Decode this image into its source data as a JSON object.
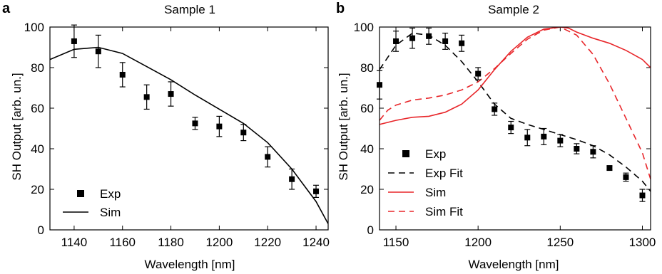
{
  "chart_data": [
    {
      "panel_label": "a",
      "type": "scatter",
      "title": "Sample 1",
      "xlabel": "Wavelength [nm]",
      "ylabel": "SH Output [arb. un.]",
      "xlim": [
        1130,
        1245
      ],
      "ylim": [
        0,
        100
      ],
      "xticks": [
        1140,
        1160,
        1180,
        1200,
        1220,
        1240
      ],
      "yticks": [
        0,
        20,
        40,
        60,
        80,
        100
      ],
      "grid": false,
      "legend_position": "bottom-left",
      "series": [
        {
          "name": "Exp",
          "kind": "points-with-errorbars",
          "color": "#000000",
          "x": [
            1140,
            1150,
            1160,
            1170,
            1180,
            1190,
            1200,
            1210,
            1220,
            1230,
            1240
          ],
          "y": [
            93,
            88,
            76.5,
            65.5,
            67,
            52.5,
            51,
            48,
            36,
            25,
            19
          ],
          "err": [
            8,
            8,
            6,
            6,
            6,
            3,
            5,
            4,
            5,
            5,
            3
          ]
        },
        {
          "name": "Sim",
          "kind": "line",
          "color": "#000000",
          "dash": "solid",
          "x": [
            1130,
            1140,
            1150,
            1160,
            1170,
            1180,
            1190,
            1200,
            1210,
            1220,
            1230,
            1240,
            1245
          ],
          "y": [
            84,
            89,
            90,
            87,
            80.5,
            74,
            66.5,
            59.5,
            52.5,
            43,
            30,
            14,
            3
          ]
        }
      ]
    },
    {
      "panel_label": "b",
      "type": "scatter",
      "title": "Sample 2",
      "xlabel": "Wavelength [nm]",
      "ylabel": "SH Output [arb. un.]",
      "xlim": [
        1140,
        1305
      ],
      "ylim": [
        0,
        100
      ],
      "xticks": [
        1150,
        1200,
        1250,
        1300
      ],
      "yticks": [
        0,
        20,
        40,
        60,
        80,
        100
      ],
      "grid": false,
      "legend_position": "bottom-left",
      "series": [
        {
          "name": "Exp",
          "kind": "points-with-errorbars",
          "color": "#000000",
          "x": [
            1140,
            1150,
            1160,
            1170,
            1180,
            1190,
            1200,
            1210,
            1220,
            1230,
            1240,
            1250,
            1260,
            1270,
            1280,
            1290,
            1300
          ],
          "y": [
            71.5,
            93,
            94.5,
            95.5,
            93,
            92,
            77,
            59.5,
            50.5,
            45.5,
            46,
            44,
            40,
            38.5,
            30.5,
            26,
            17
          ],
          "err": [
            7,
            5,
            5,
            4,
            4,
            4,
            3,
            3,
            3,
            4,
            4,
            3,
            2.5,
            3,
            1,
            2,
            3
          ]
        },
        {
          "name": "Exp Fit",
          "kind": "line",
          "color": "#000000",
          "dash": "dashed",
          "x": [
            1140,
            1150,
            1160,
            1170,
            1180,
            1190,
            1200,
            1210,
            1220,
            1230,
            1240,
            1250,
            1260,
            1270,
            1280,
            1290,
            1300,
            1305
          ],
          "y": [
            79,
            91,
            97,
            96,
            91,
            83,
            73,
            62,
            55,
            52,
            49.5,
            47,
            44.5,
            41.5,
            37,
            31,
            24,
            19
          ]
        },
        {
          "name": "Sim",
          "kind": "line",
          "color": "#e8262a",
          "dash": "solid",
          "x": [
            1140,
            1150,
            1160,
            1170,
            1180,
            1190,
            1200,
            1210,
            1220,
            1230,
            1240,
            1250,
            1255,
            1260,
            1270,
            1280,
            1290,
            1300,
            1305
          ],
          "y": [
            52,
            54,
            55.5,
            56,
            58,
            62,
            69,
            79,
            88,
            95,
            99,
            100,
            99.5,
            97.5,
            94.5,
            92,
            88.5,
            84,
            80
          ]
        },
        {
          "name": "Sim Fit",
          "kind": "line",
          "color": "#e8262a",
          "dash": "dashed",
          "x": [
            1140,
            1145,
            1150,
            1160,
            1170,
            1180,
            1190,
            1200,
            1210,
            1220,
            1230,
            1240,
            1250,
            1260,
            1270,
            1280,
            1290,
            1300,
            1305
          ],
          "y": [
            54,
            59,
            61.5,
            64,
            65,
            66.5,
            69,
            73,
            79.5,
            87,
            94,
            98.5,
            100,
            96,
            86.5,
            72,
            55,
            38,
            25
          ]
        }
      ]
    }
  ]
}
